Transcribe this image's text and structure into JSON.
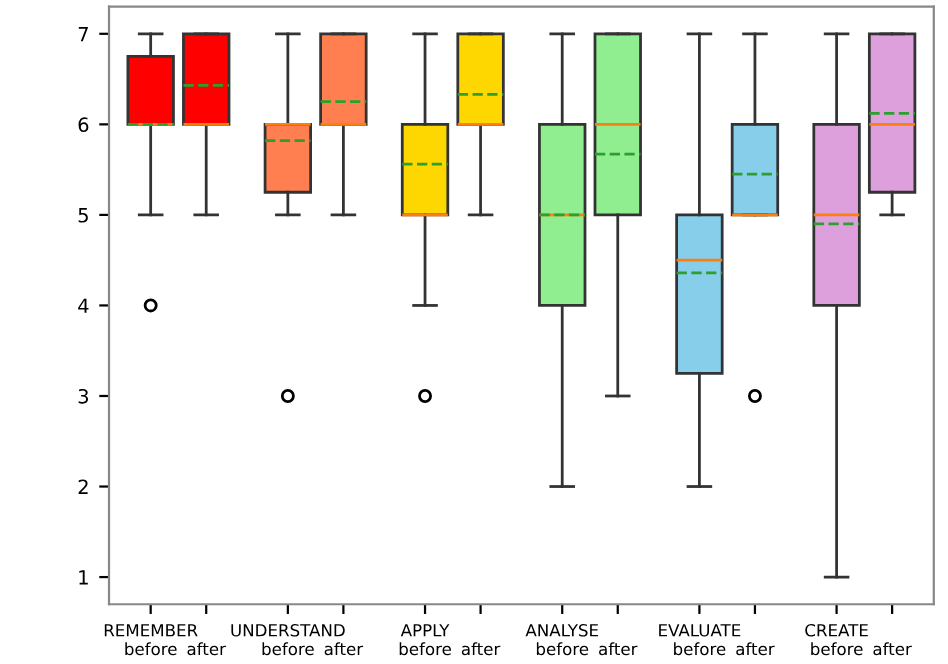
{
  "chart_data": {
    "type": "box",
    "categories": [
      "REMEMBER\nbefore",
      "after",
      "UNDERSTAND\nbefore",
      "after",
      "APPLY\nbefore",
      "after",
      "ANALYSE\nbefore",
      "after",
      "EVALUATE\nbefore",
      "after",
      "CREATE\nbefore",
      "after"
    ],
    "colors": [
      "#ff0000",
      "#ff0000",
      "#ff7f50",
      "#ff7f50",
      "#ffd700",
      "#ffd700",
      "#90ee90",
      "#90ee90",
      "#87ceeb",
      "#87ceeb",
      "#dda0dd",
      "#dda0dd"
    ],
    "boxes": [
      {
        "low": 5,
        "q1": 6,
        "median": 6,
        "q3": 6.75,
        "high": 7,
        "mean": 6.0,
        "outliers": [
          4
        ]
      },
      {
        "low": 5,
        "q1": 6,
        "median": 6,
        "q3": 7,
        "high": 7,
        "mean": 6.43
      },
      {
        "low": 5,
        "q1": 5.25,
        "median": 6,
        "q3": 6,
        "high": 7,
        "mean": 5.82,
        "outliers": [
          3
        ]
      },
      {
        "low": 5,
        "q1": 6,
        "median": 6,
        "q3": 7,
        "high": 7,
        "mean": 6.25
      },
      {
        "low": 4,
        "q1": 5,
        "median": 5,
        "q3": 6,
        "high": 7,
        "mean": 5.56,
        "outliers": [
          3
        ]
      },
      {
        "low": 5,
        "q1": 6,
        "median": 6,
        "q3": 7,
        "high": 7,
        "mean": 6.33
      },
      {
        "low": 2,
        "q1": 4,
        "median": 5,
        "q3": 6,
        "high": 7,
        "mean": 5.0
      },
      {
        "low": 3,
        "q1": 5,
        "median": 6,
        "q3": 7,
        "high": 7,
        "mean": 5.67
      },
      {
        "low": 2,
        "q1": 3.25,
        "median": 4.5,
        "q3": 5,
        "high": 7,
        "mean": 4.36
      },
      {
        "low": 5,
        "q1": 5,
        "median": 5,
        "q3": 6,
        "high": 7,
        "mean": 5.45,
        "outliers": [
          3
        ]
      },
      {
        "low": 1,
        "q1": 4,
        "median": 5,
        "q3": 6,
        "high": 7,
        "mean": 4.9
      },
      {
        "low": 5,
        "q1": 5.25,
        "median": 6,
        "q3": 7,
        "high": 7,
        "mean": 6.12
      }
    ],
    "ylim": [
      0.7,
      7.3
    ],
    "yticks": [
      1,
      2,
      3,
      4,
      5,
      6,
      7
    ],
    "grid": false
  }
}
